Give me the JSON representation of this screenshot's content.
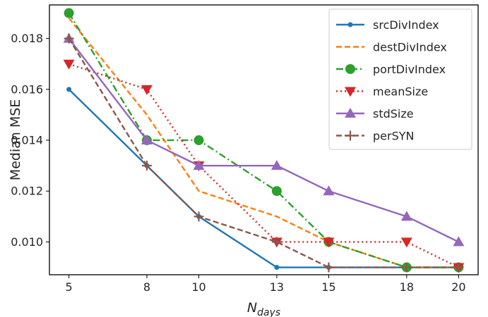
{
  "chart_data": {
    "type": "line",
    "x": [
      5,
      8,
      10,
      13,
      15,
      18,
      20
    ],
    "xlabel_main": "N",
    "xlabel_sub": "days",
    "ylabel": "Median MSE",
    "xticks": [
      "5",
      "8",
      "10",
      "13",
      "15",
      "18",
      "20"
    ],
    "yticks": [
      "0.010",
      "0.012",
      "0.014",
      "0.016",
      "0.018"
    ],
    "ytick_values": [
      0.01,
      0.012,
      0.014,
      0.016,
      0.018
    ],
    "xlim": [
      4.25,
      20.75
    ],
    "ylim": [
      0.00871,
      0.01932
    ],
    "grid": false,
    "legend_position": "top-right",
    "series": [
      {
        "name": "srcDivIndex",
        "color": "#1f77b4",
        "dash": "solid",
        "marker": "point",
        "values": [
          0.016,
          0.013,
          0.011,
          0.009,
          0.009,
          0.009,
          0.009
        ]
      },
      {
        "name": "destDivIndex",
        "color": "#ff7f0e",
        "dash": "dashed",
        "marker": "none",
        "values": [
          0.0188,
          0.015,
          0.012,
          0.011,
          0.01,
          0.009,
          0.009
        ]
      },
      {
        "name": "portDivIndex",
        "color": "#2ca02c",
        "dash": "dashdot",
        "marker": "circle",
        "values": [
          0.019,
          0.014,
          0.014,
          0.012,
          0.01,
          0.009,
          0.009
        ]
      },
      {
        "name": "meanSize",
        "color": "#d62728",
        "dash": "dotted",
        "marker": "triangle-down",
        "values": [
          0.017,
          0.016,
          0.013,
          0.01,
          0.01,
          0.01,
          0.009
        ]
      },
      {
        "name": "stdSize",
        "color": "#9467bd",
        "dash": "solid",
        "marker": "triangle-up",
        "values": [
          0.018,
          0.014,
          0.013,
          0.013,
          0.012,
          0.011,
          0.01
        ]
      },
      {
        "name": "perSYN",
        "color": "#8c564b",
        "dash": "dashed",
        "marker": "plus",
        "values": [
          0.018,
          0.013,
          0.011,
          0.01,
          0.009,
          0.009,
          0.009
        ]
      }
    ]
  }
}
